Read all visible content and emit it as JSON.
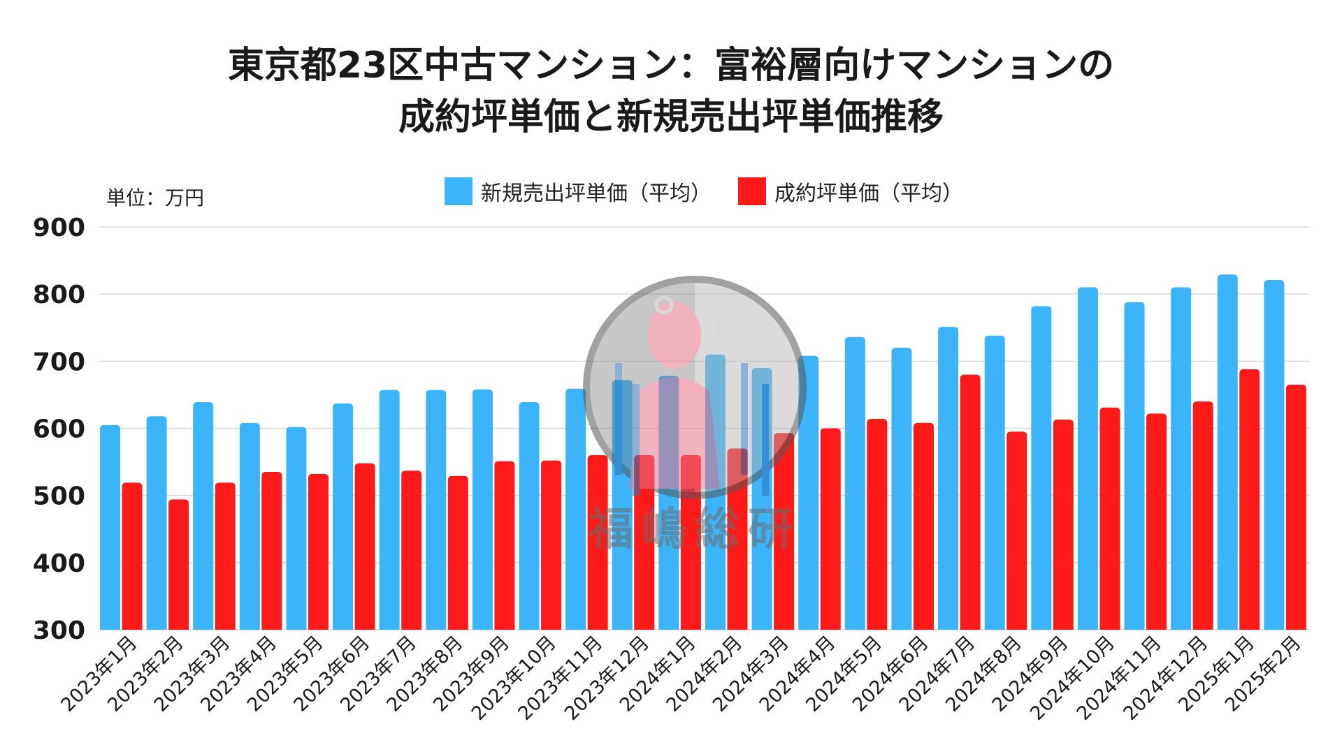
{
  "title": {
    "line1": "東京都23区中古マンション：富裕層向けマンションの",
    "line2": "成約坪単価と新規売出坪単価推移"
  },
  "unit_label": "単位：万円",
  "watermark": {
    "text": "福嶋総研"
  },
  "colors": {
    "listing": "#3BB4FA",
    "contract": "#FF1A1A",
    "grid": "#D9D9D9",
    "axis_text": "#1a1a1a"
  },
  "chart_data": {
    "type": "bar",
    "title": "東京都23区中古マンション：富裕層向けマンションの成約坪単価と新規売出坪単価推移",
    "unit": "単位：万円",
    "ylim": [
      300,
      900
    ],
    "yticks": [
      300,
      400,
      500,
      600,
      700,
      800,
      900
    ],
    "grid": true,
    "legend_position": "top-center",
    "categories": [
      "2023年1月",
      "2023年2月",
      "2023年3月",
      "2023年4月",
      "2023年5月",
      "2023年6月",
      "2023年7月",
      "2023年8月",
      "2023年9月",
      "2023年10月",
      "2023年11月",
      "2023年12月",
      "2024年1月",
      "2024年2月",
      "2024年3月",
      "2024年4月",
      "2024年5月",
      "2024年6月",
      "2024年7月",
      "2024年8月",
      "2024年9月",
      "2024年10月",
      "2024年11月",
      "2024年12月",
      "2025年1月",
      "2025年2月"
    ],
    "series": [
      {
        "name": "新規売出坪単価（平均）",
        "color": "#3BB4FA",
        "values": [
          605,
          618,
          639,
          608,
          602,
          637,
          657,
          657,
          658,
          639,
          659,
          672,
          678,
          710,
          690,
          708,
          736,
          720,
          751,
          738,
          782,
          810,
          788,
          810,
          829,
          821
        ]
      },
      {
        "name": "成約坪単価（平均）",
        "color": "#FF1A1A",
        "values": [
          519,
          494,
          519,
          535,
          532,
          548,
          537,
          529,
          551,
          552,
          560,
          560,
          560,
          570,
          593,
          600,
          614,
          608,
          680,
          595,
          613,
          631,
          622,
          640,
          688,
          665
        ]
      }
    ]
  }
}
